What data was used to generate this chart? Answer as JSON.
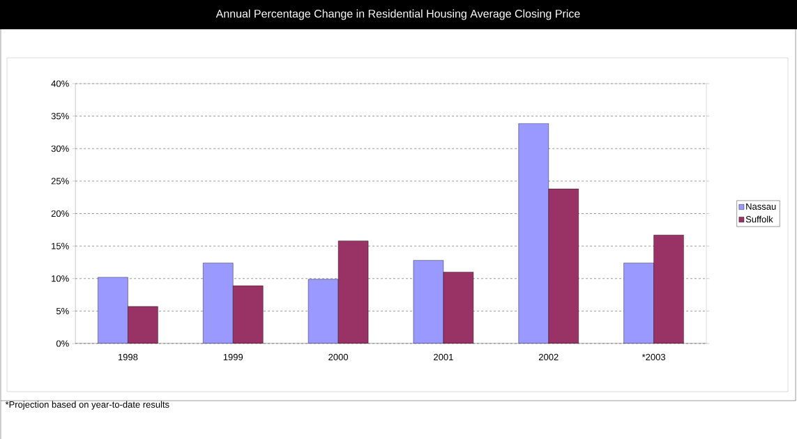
{
  "chart_data": {
    "type": "bar",
    "title": "Annual Percentage Change in Residential Housing Average Closing Price",
    "categories": [
      "1998",
      "1999",
      "2000",
      "2001",
      "2002",
      "*2003"
    ],
    "series": [
      {
        "name": "Nassau",
        "color": "#9999ff",
        "values": [
          10.2,
          12.4,
          9.9,
          12.8,
          33.9,
          12.4
        ]
      },
      {
        "name": "Suffolk",
        "color": "#993366",
        "values": [
          5.7,
          8.9,
          15.8,
          11.0,
          23.8,
          16.7
        ]
      }
    ],
    "ylim": [
      0,
      40
    ],
    "yticks": [
      {
        "value": 0,
        "label": "0%"
      },
      {
        "value": 5,
        "label": "5%"
      },
      {
        "value": 10,
        "label": "10%"
      },
      {
        "value": 15,
        "label": "15%"
      },
      {
        "value": 20,
        "label": "20%"
      },
      {
        "value": 25,
        "label": "25%"
      },
      {
        "value": 30,
        "label": "30%"
      },
      {
        "value": 35,
        "label": "35%"
      },
      {
        "value": 40,
        "label": "40%"
      }
    ],
    "grid": "y",
    "legend": "right",
    "annotations": [
      "*Projection based on year-to-date results"
    ]
  }
}
